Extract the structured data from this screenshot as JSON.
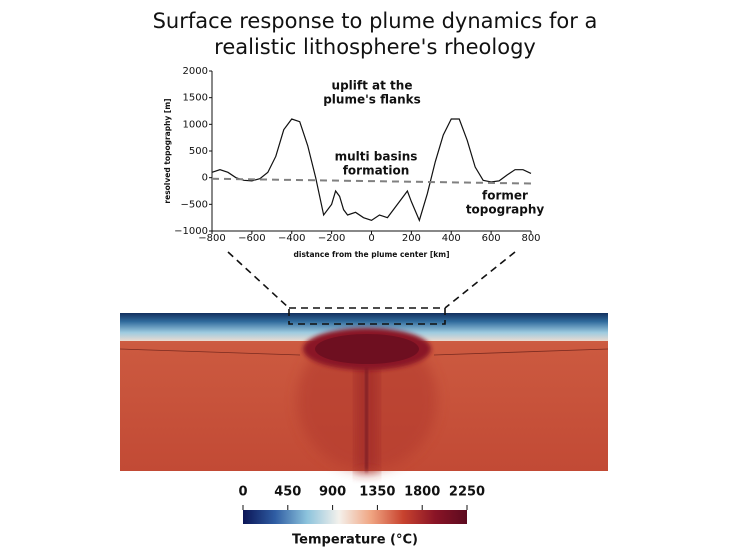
{
  "chart_data": {
    "type": "line",
    "title": "Surface response to plume dynamics for a realistic lithosphere's rheology",
    "x_label": "distance from the plume center [km]",
    "y_label": "resolved topography [m]",
    "xlim": [
      -800,
      800
    ],
    "ylim": [
      -1000,
      2000
    ],
    "xticks": [
      {
        "value": -800,
        "label": "−800"
      },
      {
        "value": -600,
        "label": "−600"
      },
      {
        "value": -400,
        "label": "−400"
      },
      {
        "value": -200,
        "label": "−200"
      },
      0,
      200,
      400,
      600,
      800
    ],
    "yticks": [
      {
        "value": -1000,
        "label": "−1000"
      },
      {
        "value": -500,
        "label": "−500"
      },
      0,
      500,
      1000,
      1500,
      2000
    ],
    "series": [
      {
        "color": "#111111",
        "dash": false,
        "x": [
          -800,
          -760,
          -720,
          -680,
          -640,
          -600,
          -560,
          -520,
          -480,
          -440,
          -400,
          -360,
          -320,
          -280,
          -240,
          -200,
          -180,
          -160,
          -140,
          -120,
          -80,
          -40,
          0,
          40,
          80,
          120,
          160,
          180,
          200,
          240,
          280,
          320,
          360,
          400,
          440,
          480,
          520,
          560,
          600,
          640,
          680,
          720,
          760,
          800
        ],
        "values": [
          100,
          150,
          100,
          0,
          -50,
          -60,
          -20,
          100,
          400,
          900,
          1100,
          1050,
          600,
          0,
          -700,
          -500,
          -250,
          -350,
          -600,
          -700,
          -650,
          -750,
          -800,
          -700,
          -750,
          -550,
          -350,
          -250,
          -450,
          -800,
          -300,
          300,
          800,
          1100,
          1100,
          700,
          200,
          -50,
          -80,
          -60,
          50,
          150,
          150,
          80
        ]
      },
      {
        "color": "#808080",
        "dash": true,
        "x": [
          -800,
          800
        ],
        "values": [
          -20,
          -110
        ]
      }
    ],
    "annotations": [
      {
        "lines": [
          "uplift at the",
          "plume's flanks"
        ],
        "color": "#111111"
      },
      {
        "lines": [
          "multi basins",
          "formation"
        ],
        "color": "#111111"
      },
      {
        "lines": [
          "former",
          "topography"
        ],
        "color": "#808080"
      }
    ]
  },
  "colorbar": {
    "label": "Temperature (°C)",
    "lim": [
      0,
      2250
    ],
    "ticks": [
      0,
      450,
      900,
      1350,
      1800,
      2250
    ],
    "colors": [
      "#0b1556",
      "#2f5da3",
      "#8cc3dc",
      "#f4f1ec",
      "#f0a582",
      "#c8432f",
      "#8a1426",
      "#5c0a1f"
    ]
  }
}
